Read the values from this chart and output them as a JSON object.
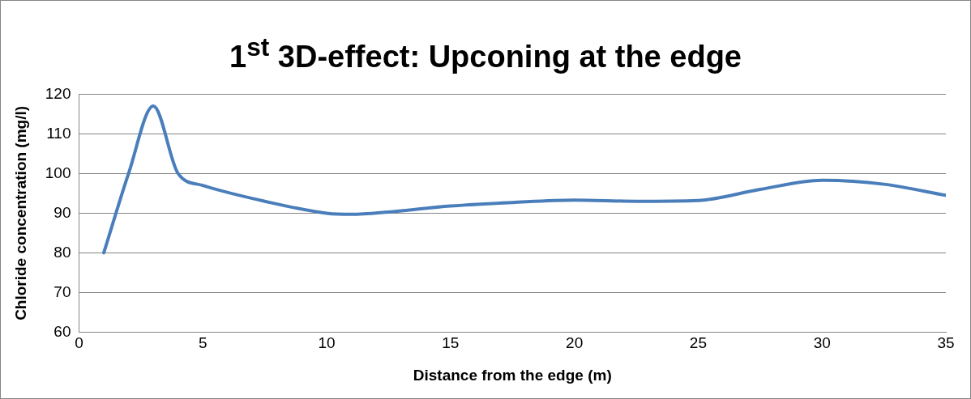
{
  "chart_data": {
    "type": "line",
    "title": "1$^{st}$ 3D-effect: Upconing at the edge",
    "xlabel": "Distance from the edge (m)",
    "ylabel": "Chloride concentration (mg/l)",
    "x": [
      1,
      2,
      3,
      4,
      5,
      7.5,
      10,
      11,
      12.5,
      15,
      17.5,
      20,
      22.5,
      25,
      27.5,
      30,
      32.5,
      35
    ],
    "series": [
      {
        "color": "#4a7ebb",
        "values": [
          80,
          100,
          117,
          100,
          97,
          93,
          90,
          89.7,
          90.3,
          91.8,
          92.7,
          93.3,
          93,
          93.2,
          96,
          98.3,
          97.3,
          94.5
        ]
      }
    ],
    "xlim": [
      0,
      35
    ],
    "xticks": [
      0,
      5,
      10,
      15,
      20,
      25,
      30,
      35
    ],
    "ylim": [
      60,
      120
    ],
    "yticks": [
      60,
      70,
      80,
      90,
      100,
      110,
      120
    ],
    "grid": "y",
    "legend": false,
    "marker": "none",
    "line_style": "solid"
  }
}
